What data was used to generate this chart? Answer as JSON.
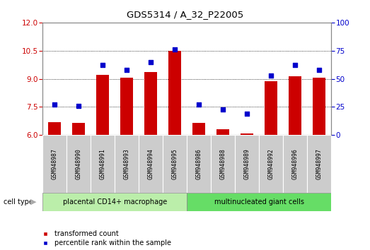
{
  "title": "GDS5314 / A_32_P22005",
  "samples": [
    "GSM948987",
    "GSM948990",
    "GSM948991",
    "GSM948993",
    "GSM948994",
    "GSM948995",
    "GSM948986",
    "GSM948988",
    "GSM948989",
    "GSM948992",
    "GSM948996",
    "GSM948997"
  ],
  "transformed_count": [
    6.7,
    6.65,
    9.2,
    9.05,
    9.35,
    10.5,
    6.65,
    6.3,
    6.1,
    8.85,
    9.15,
    9.05
  ],
  "percentile_rank": [
    27,
    26,
    62,
    58,
    65,
    76,
    27,
    23,
    19,
    53,
    62,
    58
  ],
  "group1_label": "placental CD14+ macrophage",
  "group1_count": 6,
  "group2_label": "multinucleated giant cells",
  "group2_count": 6,
  "cell_type_label": "cell type",
  "ylim_left": [
    6,
    12
  ],
  "ylim_right": [
    0,
    100
  ],
  "yticks_left": [
    6,
    7.5,
    9,
    10.5,
    12
  ],
  "yticks_right": [
    0,
    25,
    50,
    75,
    100
  ],
  "bar_color": "#cc0000",
  "dot_color": "#0000cc",
  "bar_width": 0.55,
  "legend_items": [
    "transformed count",
    "percentile rank within the sample"
  ],
  "grid_color": "#000000",
  "bg_color": "#ffffff",
  "plot_bg_color": "#ffffff",
  "group1_bg": "#bbeeaa",
  "group2_bg": "#66dd66",
  "sample_bg": "#cccccc",
  "left_axis_color": "#cc0000",
  "right_axis_color": "#0000cc"
}
